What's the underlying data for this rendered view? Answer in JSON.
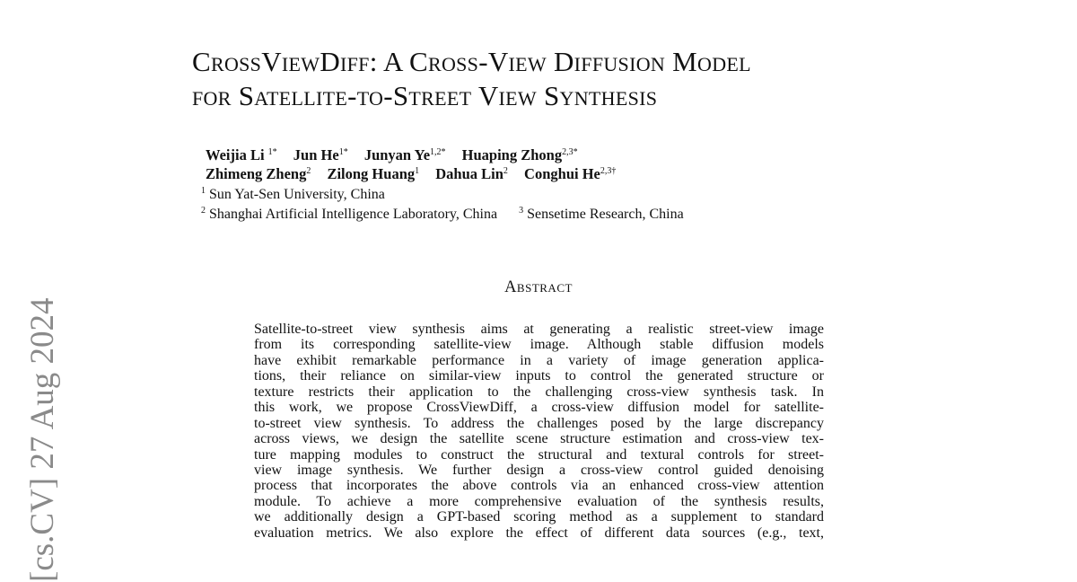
{
  "title": {
    "line1": "CrossViewDiff: A Cross-View Diffusion Model",
    "line2": "for Satellite-to-Street View Synthesis"
  },
  "authors": [
    {
      "name": "Weijia Li",
      "sup": "1*"
    },
    {
      "name": "Jun He",
      "sup": "1*"
    },
    {
      "name": "Junyan Ye",
      "sup": "1,2*"
    },
    {
      "name": "Huaping Zhong",
      "sup": "2,3*"
    },
    {
      "name": "Zhimeng Zheng",
      "sup": "2"
    },
    {
      "name": "Zilong Huang",
      "sup": "1"
    },
    {
      "name": "Dahua Lin",
      "sup": "2"
    },
    {
      "name": "Conghui He",
      "sup": "2,3†"
    }
  ],
  "affiliations": [
    {
      "sup": "1",
      "text": "Sun Yat-Sen University, China"
    },
    {
      "sup": "2",
      "text": "Shanghai Artificial Intelligence Laboratory, China"
    },
    {
      "sup": "3",
      "text": "Sensetime Research, China"
    }
  ],
  "abstract_heading": "Abstract",
  "abstract_lines": [
    "Satellite-to-street view synthesis aims at generating a realistic street-view image",
    "from its corresponding satellite-view image.  Although stable diffusion models",
    "have exhibit remarkable performance in a variety of image generation applica-",
    "tions, their reliance on similar-view inputs to control the generated structure or",
    "texture restricts their application to the challenging cross-view synthesis task. In",
    "this work, we propose CrossViewDiff, a cross-view diffusion model for satellite-",
    "to-street view synthesis. To address the challenges posed by the large discrepancy",
    "across views, we design the satellite scene structure estimation and cross-view tex-",
    "ture mapping modules to construct the structural and textural controls for street-",
    "view image synthesis.  We further design a cross-view control guided denoising",
    "process that incorporates the above controls via an enhanced cross-view attention",
    "module.  To achieve a more comprehensive evaluation of the synthesis results,",
    "we additionally design a GPT-based scoring method as a supplement to standard",
    "evaluation metrics.  We also explore the effect of different data sources (e.g., text,"
  ],
  "arxiv_stamp": "[cs.CV]  27 Aug 2024"
}
